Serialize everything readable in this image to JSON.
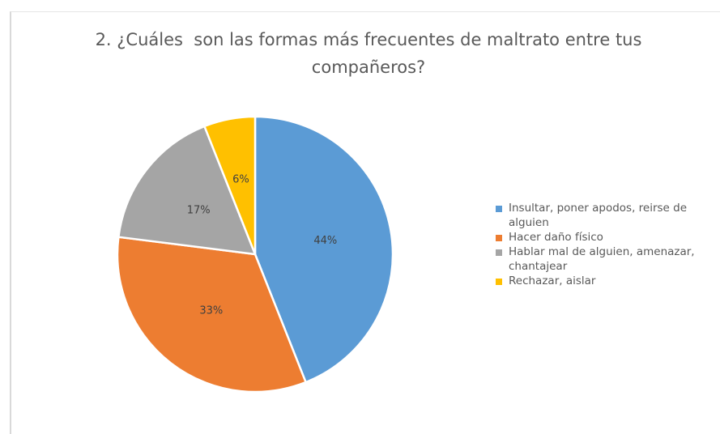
{
  "chart_data": {
    "type": "pie",
    "title": "2. ¿Cuáles  son las formas más frecuentes de maltrato entre tus compañeros?",
    "categories": [
      "Insultar, poner apodos, reirse de alguien",
      "Hacer daño físico",
      "Hablar mal de alguien, amenazar, chantajear",
      "Rechazar, aislar"
    ],
    "values": [
      44,
      33,
      17,
      6
    ],
    "value_labels": [
      "44%",
      "33%",
      "17%",
      "6%"
    ],
    "colors": [
      "#5b9bd5",
      "#ed7d31",
      "#a5a5a5",
      "#ffc000"
    ],
    "legend": "right"
  }
}
